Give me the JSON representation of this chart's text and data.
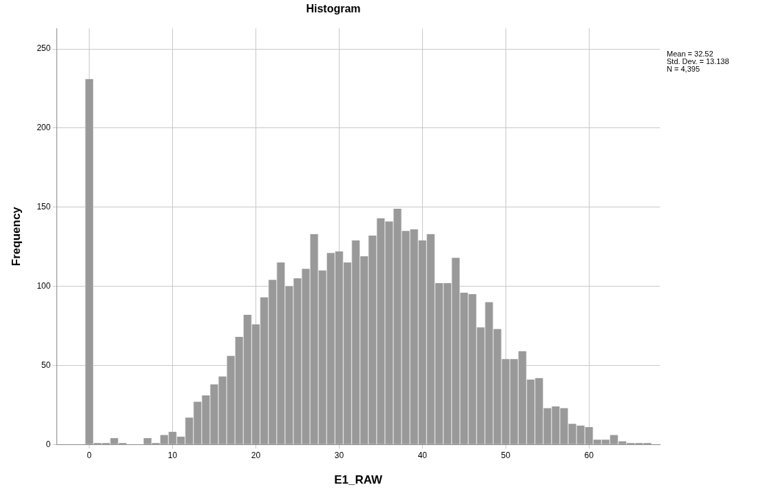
{
  "chart_data": {
    "type": "histogram",
    "title": "Histogram",
    "xlabel": "E1_RAW",
    "ylabel": "Frequency",
    "bins": [
      -0.5,
      0.5,
      1.5,
      2.5,
      3.5,
      4.5,
      5.5,
      6.5,
      7.5,
      8.5,
      9.5,
      10.5,
      11.5,
      12.5,
      13.5,
      14.5,
      15.5,
      16.5,
      17.5,
      18.5,
      19.5,
      20.5,
      21.5,
      22.5,
      23.5,
      24.5,
      25.5,
      26.5,
      27.5,
      28.5,
      29.5,
      30.5,
      31.5,
      32.5,
      33.5,
      34.5,
      35.5,
      36.5,
      37.5,
      38.5,
      39.5,
      40.5,
      41.5,
      42.5,
      43.5,
      44.5,
      45.5,
      46.5,
      47.5,
      48.5,
      49.5,
      50.5,
      51.5,
      52.5,
      53.5,
      54.5,
      55.5,
      56.5,
      57.5,
      58.5,
      59.5,
      60.5,
      61.5,
      62.5,
      63.5,
      64.5,
      65.5,
      66.5,
      67.5
    ],
    "values": [
      231,
      1,
      1,
      4,
      1,
      0,
      0,
      4,
      1,
      6,
      8,
      5,
      17,
      27,
      31,
      38,
      43,
      56,
      68,
      82,
      76,
      93,
      104,
      115,
      100,
      105,
      111,
      133,
      110,
      121,
      122,
      115,
      129,
      119,
      132,
      143,
      141,
      149,
      135,
      136,
      129,
      133,
      102,
      102,
      118,
      96,
      95,
      74,
      90,
      73,
      54,
      54,
      59,
      41,
      42,
      23,
      24,
      23,
      13,
      12,
      11,
      3,
      3,
      6,
      2,
      1,
      1,
      1
    ],
    "color": "#999999",
    "xlim": [
      -3.9,
      68.5
    ],
    "xticks": [
      0,
      10,
      20,
      30,
      40,
      50,
      60
    ],
    "ylim": [
      0,
      263
    ],
    "yticks": [
      0,
      50,
      100,
      150,
      200,
      250
    ],
    "grid": true,
    "annotations": [
      "Mean = 32.52",
      "Std. Dev. = 13.138",
      "N = 4,395"
    ]
  }
}
